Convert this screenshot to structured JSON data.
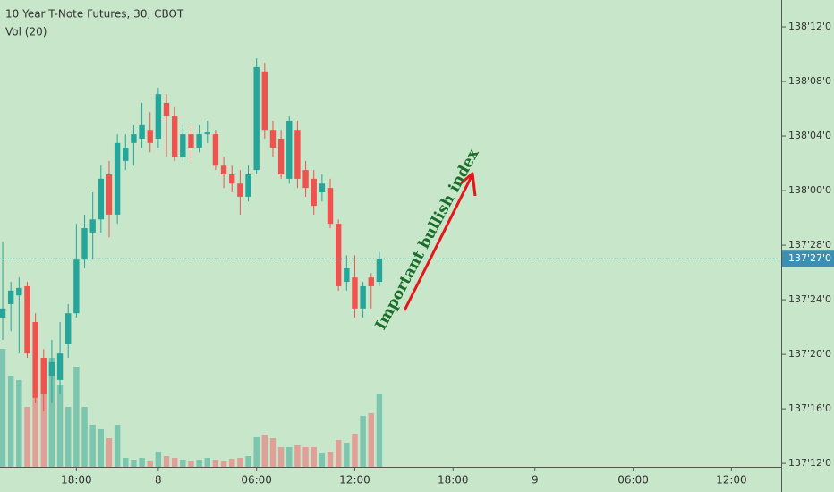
{
  "chart_data": {
    "type": "candlestick",
    "title": "10 Year T-Note Futures, 30, CBOT",
    "volume_label": "Vol (20)",
    "annotation": "Important bullish index",
    "x": [
      0,
      1,
      2,
      3,
      4,
      5,
      6,
      7,
      8,
      9,
      10,
      11,
      12,
      13,
      14,
      15,
      16,
      17,
      18,
      19,
      20,
      21,
      22,
      23,
      24,
      25,
      26,
      27,
      28,
      29,
      30,
      31,
      32,
      33,
      34,
      35,
      36,
      37,
      38,
      39,
      40,
      41,
      42,
      43,
      44,
      45,
      46
    ],
    "open": [
      137.709,
      137.74,
      137.76,
      137.781,
      137.699,
      137.617,
      137.576,
      137.566,
      137.648,
      137.719,
      137.842,
      137.904,
      137.934,
      138.037,
      137.945,
      138.068,
      138.109,
      138.119,
      138.139,
      138.119,
      138.201,
      138.17,
      138.078,
      138.129,
      138.098,
      138.129,
      138.129,
      138.057,
      138.037,
      138.016,
      137.986,
      138.047,
      138.273,
      138.139,
      138.119,
      138.027,
      138.139,
      138.047,
      138.027,
      137.996,
      138.006,
      137.924,
      137.791,
      137.801,
      137.73,
      137.801,
      137.791
    ],
    "high": [
      137.883,
      137.791,
      137.801,
      137.791,
      137.719,
      137.637,
      137.658,
      137.699,
      137.74,
      137.924,
      137.945,
      137.996,
      138.057,
      138.068,
      138.129,
      138.129,
      138.15,
      138.201,
      138.18,
      138.236,
      138.221,
      138.191,
      138.15,
      138.15,
      138.15,
      138.16,
      138.139,
      138.078,
      138.057,
      138.047,
      138.057,
      138.303,
      138.293,
      138.16,
      138.139,
      138.17,
      138.16,
      138.068,
      138.047,
      138.037,
      138.027,
      137.934,
      137.852,
      137.852,
      137.791,
      137.811,
      137.859
    ],
    "low": [
      137.658,
      137.678,
      137.627,
      137.617,
      137.514,
      137.494,
      137.514,
      137.535,
      137.617,
      137.709,
      137.822,
      137.842,
      137.904,
      137.893,
      137.924,
      138.047,
      138.057,
      138.098,
      138.088,
      138.098,
      138.078,
      138.068,
      138.068,
      138.068,
      138.088,
      138.109,
      138.047,
      138.006,
      137.996,
      137.945,
      137.975,
      138.037,
      138.119,
      138.078,
      138.027,
      138.016,
      138.006,
      137.986,
      137.945,
      137.975,
      137.914,
      137.771,
      137.771,
      137.709,
      137.709,
      137.73,
      137.781
    ],
    "close": [
      137.73,
      137.771,
      137.777,
      137.627,
      137.525,
      137.535,
      137.607,
      137.627,
      137.719,
      137.842,
      137.914,
      137.934,
      138.027,
      137.945,
      138.109,
      138.098,
      138.129,
      138.15,
      138.109,
      138.221,
      138.17,
      138.078,
      138.129,
      138.098,
      138.129,
      138.133,
      138.057,
      138.037,
      138.016,
      137.986,
      138.037,
      138.283,
      138.139,
      138.098,
      138.037,
      138.16,
      138.027,
      138.006,
      137.965,
      138.016,
      137.924,
      137.781,
      137.822,
      137.73,
      137.781,
      137.781,
      137.844
    ],
    "volume": [
      132,
      102,
      97,
      67,
      77,
      82,
      122,
      92,
      67,
      112,
      67,
      47,
      42,
      32,
      47,
      10,
      8,
      10,
      7,
      17,
      12,
      10,
      8,
      7,
      8,
      10,
      8,
      7,
      9,
      10,
      12,
      34,
      36,
      32,
      22,
      22,
      24,
      22,
      22,
      16,
      17,
      30,
      27,
      37,
      57,
      60,
      82
    ],
    "vlim": [
      0,
      200
    ],
    "ylim": [
      137.365,
      138.4365
    ],
    "yticks": [
      {
        "value": 137.375,
        "label": "137'12'0"
      },
      {
        "value": 137.5,
        "label": "137'16'0"
      },
      {
        "value": 137.625,
        "label": "137'20'0"
      },
      {
        "value": 137.75,
        "label": "137'24'0"
      },
      {
        "value": 137.875,
        "label": "137'28'0"
      },
      {
        "value": 138.0,
        "label": "138'00'0"
      },
      {
        "value": 138.125,
        "label": "138'04'0"
      },
      {
        "value": 138.25,
        "label": "138'08'0"
      },
      {
        "value": 138.375,
        "label": "138'12'0"
      }
    ],
    "xlim": [
      -0.33,
      95.08
    ],
    "xticks": [
      {
        "value": 9,
        "label": "18:00"
      },
      {
        "value": 19,
        "label": "8"
      },
      {
        "value": 31,
        "label": "06:00"
      },
      {
        "value": 43,
        "label": "12:00"
      },
      {
        "value": 55,
        "label": "18:00"
      },
      {
        "value": 65,
        "label": "9"
      },
      {
        "value": 77,
        "label": "06:00"
      },
      {
        "value": 89,
        "label": "12:00"
      }
    ],
    "last_price": {
      "value": 137.844,
      "label": "137'27'0"
    },
    "up_color": "#26a69a",
    "down_color": "#ef5350",
    "volume_up_color": "#7cc5ae",
    "volume_down_color": "#e0a097",
    "last_price_color": "#3b8fb3"
  }
}
